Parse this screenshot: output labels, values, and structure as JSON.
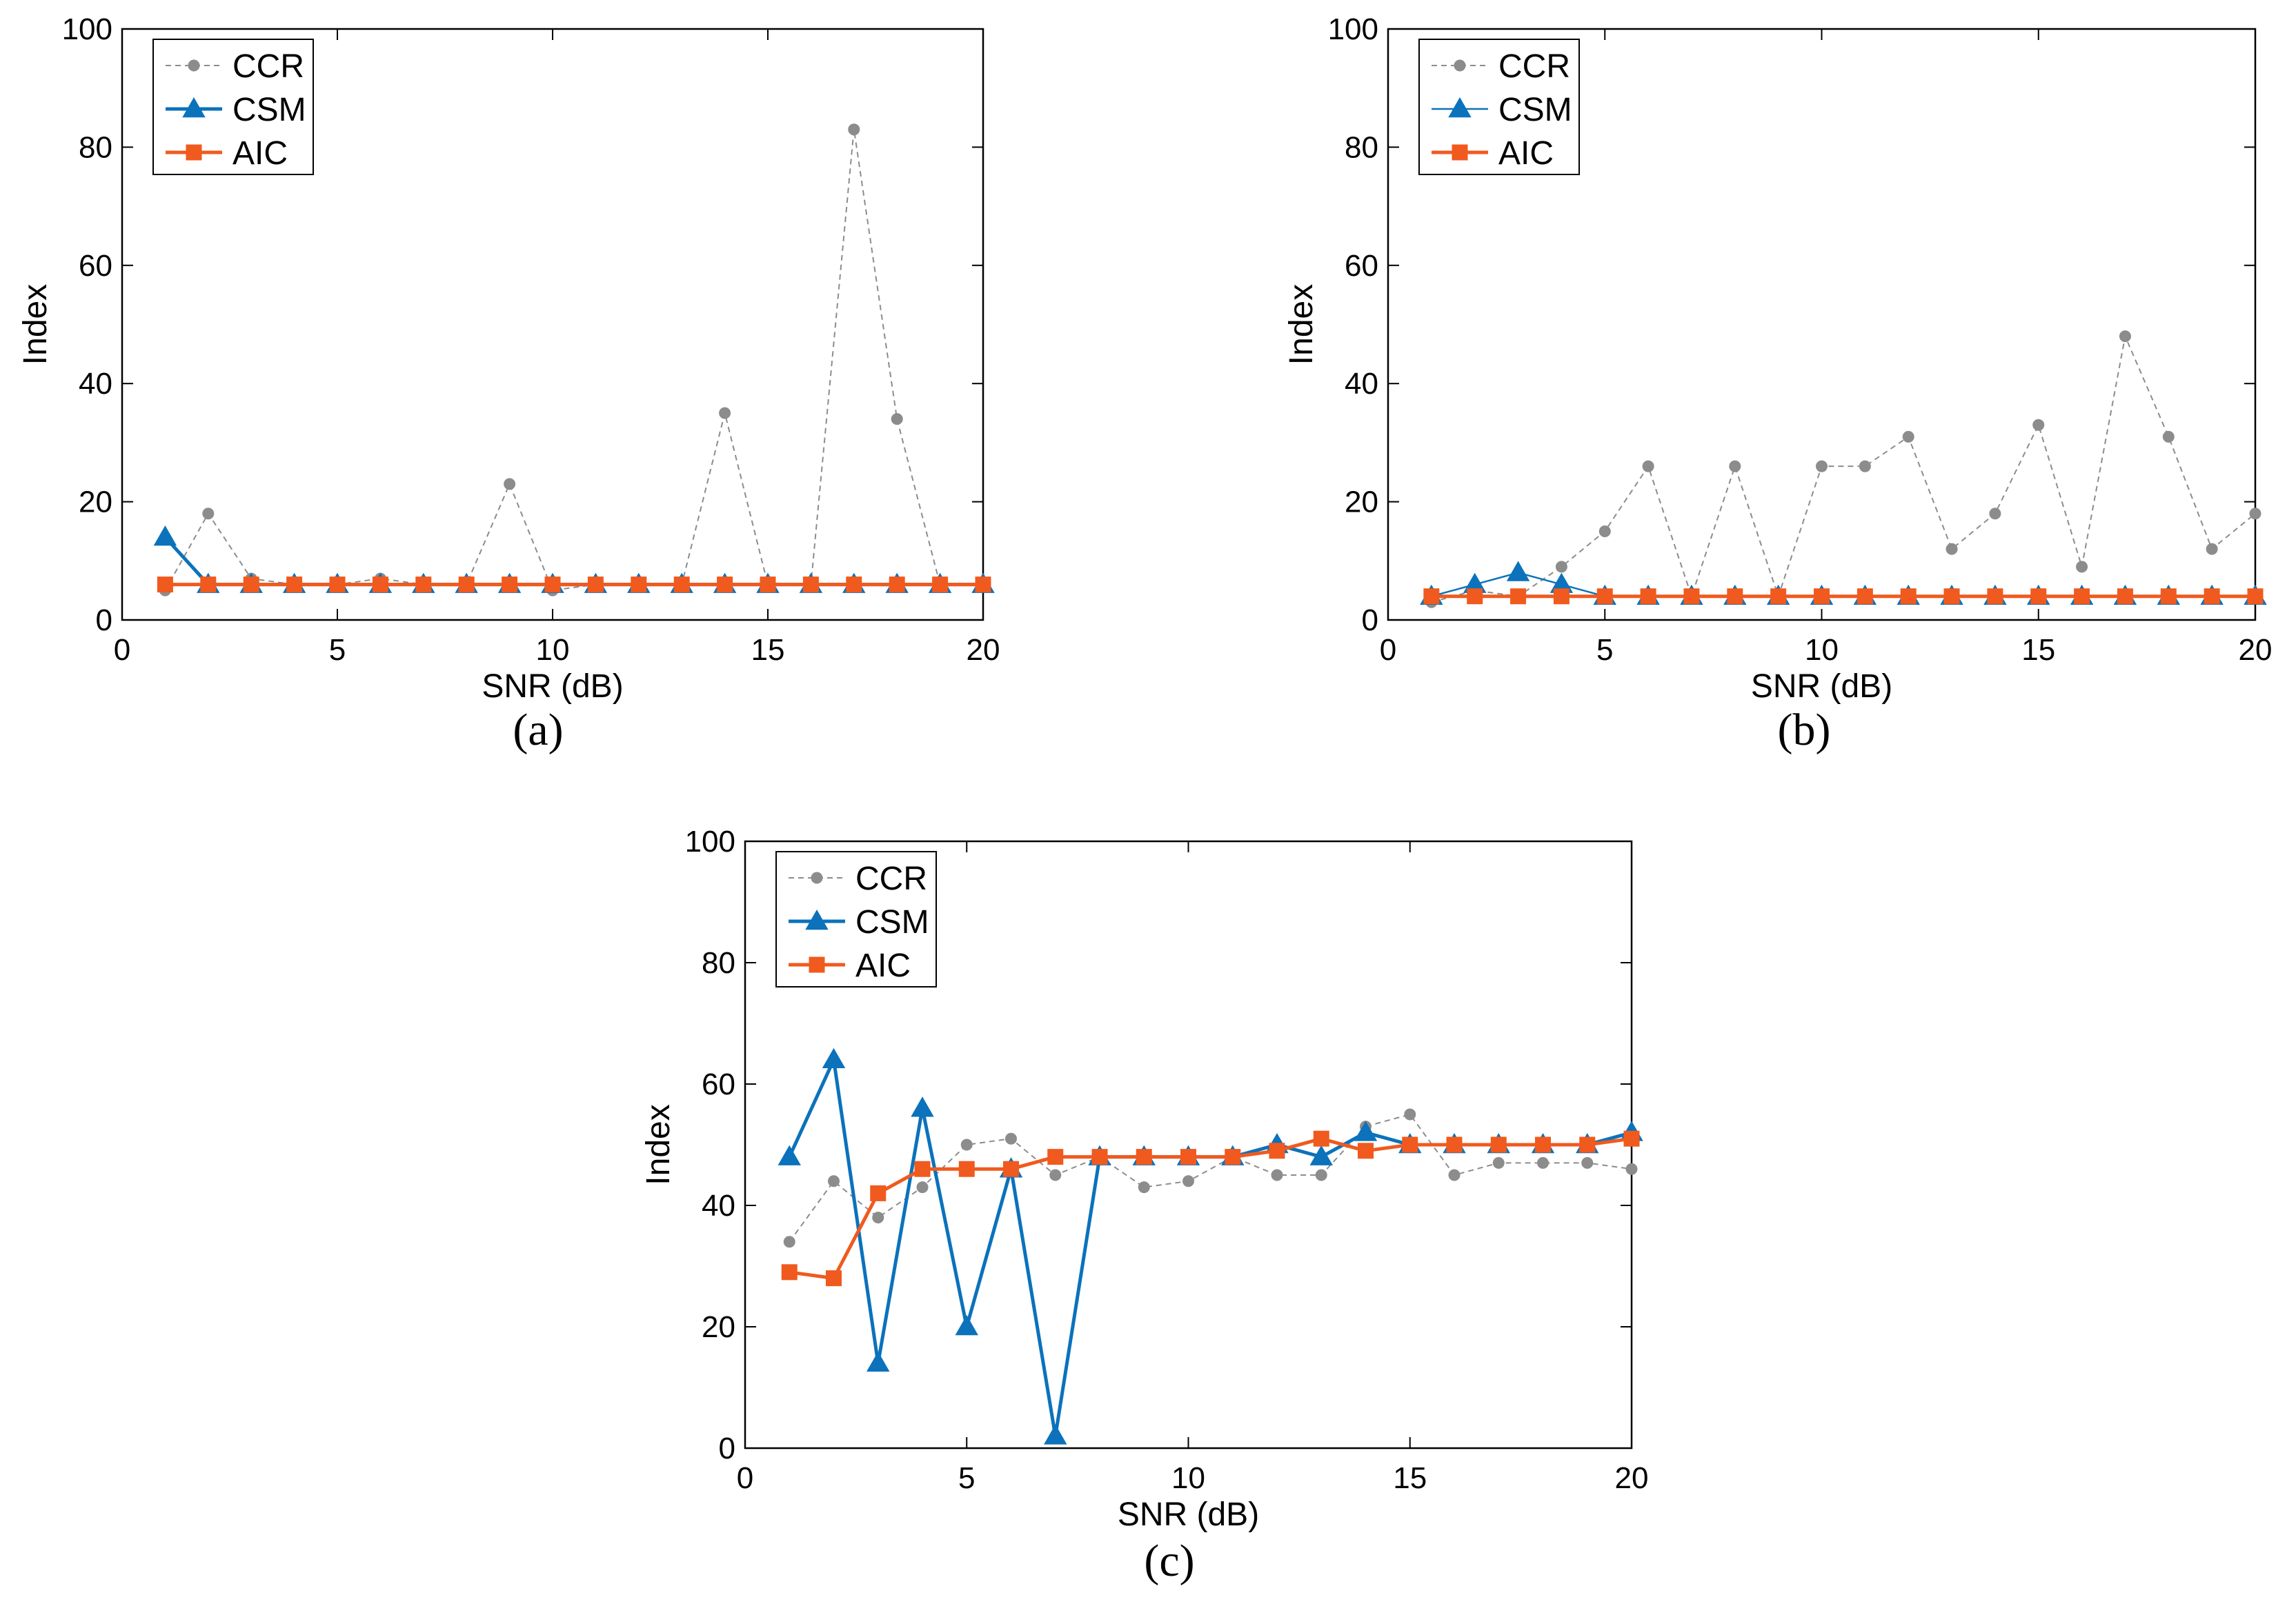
{
  "colors": {
    "CCR": "#8c8c8c",
    "CSM": "#0b72bb",
    "AIC": "#f05a1e"
  },
  "chart_data": [
    {
      "panel": "(a)",
      "type": "line",
      "xlabel": "SNR (dB)",
      "ylabel": "Index",
      "xlim": [
        0,
        20
      ],
      "ylim": [
        0,
        100
      ],
      "xticks": [
        0,
        5,
        10,
        15,
        20
      ],
      "yticks": [
        0,
        20,
        40,
        60,
        80,
        100
      ],
      "grid": false,
      "legend_position": "top-left",
      "x": [
        1,
        2,
        3,
        4,
        5,
        6,
        7,
        8,
        9,
        10,
        11,
        12,
        13,
        14,
        15,
        16,
        17,
        18,
        19,
        20
      ],
      "series": [
        {
          "name": "CCR",
          "marker": "circle",
          "style": "dashed",
          "values": [
            5,
            18,
            7,
            6,
            6,
            7,
            6,
            6,
            23,
            5,
            6,
            6,
            6,
            35,
            6,
            6,
            83,
            34,
            6,
            6
          ]
        },
        {
          "name": "CSM",
          "marker": "triangle",
          "style": "solid",
          "values": [
            14,
            6,
            6,
            6,
            6,
            6,
            6,
            6,
            6,
            6,
            6,
            6,
            6,
            6,
            6,
            6,
            6,
            6,
            6,
            6
          ]
        },
        {
          "name": "AIC",
          "marker": "square",
          "style": "solid",
          "values": [
            6,
            6,
            6,
            6,
            6,
            6,
            6,
            6,
            6,
            6,
            6,
            6,
            6,
            6,
            6,
            6,
            6,
            6,
            6,
            6
          ]
        }
      ]
    },
    {
      "panel": "(b)",
      "type": "line",
      "xlabel": "SNR (dB)",
      "ylabel": "Index",
      "xlim": [
        0,
        20
      ],
      "ylim": [
        0,
        100
      ],
      "xticks": [
        0,
        5,
        10,
        15,
        20
      ],
      "yticks": [
        0,
        20,
        40,
        60,
        80,
        100
      ],
      "grid": false,
      "legend_position": "top-left",
      "x": [
        1,
        2,
        3,
        4,
        5,
        6,
        7,
        8,
        9,
        10,
        11,
        12,
        13,
        14,
        15,
        16,
        17,
        18,
        19,
        20
      ],
      "series": [
        {
          "name": "CCR",
          "marker": "circle",
          "style": "dashed",
          "values": [
            3,
            5,
            4,
            9,
            15,
            26,
            4,
            26,
            4,
            26,
            26,
            31,
            12,
            18,
            33,
            9,
            48,
            31,
            12,
            18
          ]
        },
        {
          "name": "CSM",
          "marker": "triangle",
          "style": "solid",
          "values": [
            4,
            6,
            8,
            6,
            4,
            4,
            4,
            4,
            4,
            4,
            4,
            4,
            4,
            4,
            4,
            4,
            4,
            4,
            4,
            4
          ]
        },
        {
          "name": "AIC",
          "marker": "square",
          "style": "solid",
          "values": [
            4,
            4,
            4,
            4,
            4,
            4,
            4,
            4,
            4,
            4,
            4,
            4,
            4,
            4,
            4,
            4,
            4,
            4,
            4,
            4
          ]
        }
      ]
    },
    {
      "panel": "(c)",
      "type": "line",
      "xlabel": "SNR (dB)",
      "ylabel": "Index",
      "xlim": [
        0,
        20
      ],
      "ylim": [
        0,
        100
      ],
      "xticks": [
        0,
        5,
        10,
        15,
        20
      ],
      "yticks": [
        0,
        20,
        40,
        60,
        80,
        100
      ],
      "grid": false,
      "legend_position": "top-left",
      "x": [
        1,
        2,
        3,
        4,
        5,
        6,
        7,
        8,
        9,
        10,
        11,
        12,
        13,
        14,
        15,
        16,
        17,
        18,
        19,
        20
      ],
      "series": [
        {
          "name": "CCR",
          "marker": "circle",
          "style": "dashed",
          "values": [
            34,
            44,
            38,
            43,
            50,
            51,
            45,
            48,
            43,
            44,
            48,
            45,
            45,
            53,
            55,
            45,
            47,
            47,
            47,
            46
          ]
        },
        {
          "name": "CSM",
          "marker": "triangle",
          "style": "solid",
          "values": [
            48,
            64,
            14,
            56,
            20,
            46,
            2,
            48,
            48,
            48,
            48,
            50,
            48,
            52,
            50,
            50,
            50,
            50,
            50,
            52
          ]
        },
        {
          "name": "AIC",
          "marker": "square",
          "style": "solid",
          "values": [
            29,
            28,
            42,
            46,
            46,
            46,
            48,
            48,
            48,
            48,
            48,
            49,
            51,
            49,
            50,
            50,
            50,
            50,
            50,
            51
          ]
        }
      ]
    }
  ]
}
